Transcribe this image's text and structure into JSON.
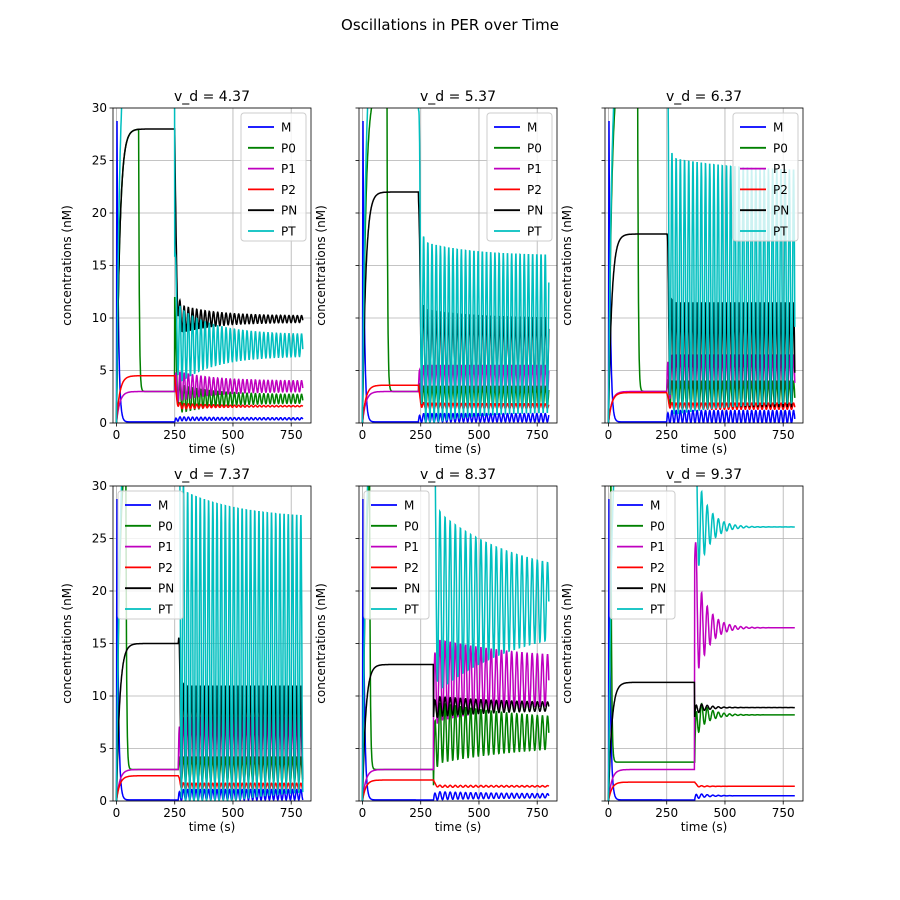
{
  "figure": {
    "title": "Oscillations in PER over Time"
  },
  "colors": {
    "M": "#0000ff",
    "P0": "#008000",
    "P1": "#bf00bf",
    "P2": "#ff0000",
    "PN": "#000000",
    "PT": "#00bfbf",
    "grid": "#b0b0b0"
  },
  "chart_data": [
    {
      "type": "line",
      "title": "v_d = 4.37",
      "xlabel": "time (s)",
      "ylabel": "concentrations (nM)",
      "xlim": [
        -15,
        835
      ],
      "ylim": [
        0,
        30
      ],
      "xticks": [
        0,
        250,
        500,
        750
      ],
      "yticks": [
        0,
        5,
        10,
        15,
        20,
        25,
        30
      ],
      "show_yticklabels": true,
      "show_xticklabels": true,
      "grid": true,
      "legend": "top-right",
      "switch": 250,
      "series": [
        {
          "name": "M",
          "pre": 0.1,
          "post": 0.4,
          "amp0": 0.2,
          "ampEnd": 0.1,
          "period": 18,
          "decay": 150
        },
        {
          "name": "P0",
          "pre": 3.0,
          "post": 2.3,
          "amp0": 1.5,
          "ampEnd": 0.4,
          "period": 18,
          "decay": 150,
          "spikeTo": 12,
          "pre0": 28,
          "preDropAt": 95
        },
        {
          "name": "P1",
          "pre": 3.0,
          "post": 3.5,
          "amp0": 1.5,
          "ampEnd": 0.5,
          "period": 18,
          "decay": 150
        },
        {
          "name": "P2",
          "pre": 4.5,
          "post": 1.6,
          "amp0": 0.3,
          "ampEnd": 0.05,
          "period": 18,
          "decay": 150
        },
        {
          "name": "PN",
          "pre": 28.0,
          "post": 9.9,
          "amp0": 1.5,
          "ampEnd": 0.3,
          "period": 18,
          "decay": 150
        },
        {
          "name": "PT",
          "pre": 38.0,
          "post": 7.4,
          "amp0": 4.0,
          "ampEnd": 1.0,
          "period": 18,
          "decay": 150,
          "spikeTo": 16
        }
      ]
    },
    {
      "type": "line",
      "title": "v_d = 5.37",
      "xlabel": "time (s)",
      "ylabel": "concentrations (nM)",
      "xlim": [
        -15,
        835
      ],
      "ylim": [
        0,
        30
      ],
      "xticks": [
        0,
        250,
        500,
        750
      ],
      "yticks": [
        0,
        5,
        10,
        15,
        20,
        25,
        30
      ],
      "show_yticklabels": false,
      "show_xticklabels": true,
      "grid": true,
      "legend": "top-right",
      "switch": 240,
      "series": [
        {
          "name": "M",
          "pre": 0.1,
          "post": 0.5,
          "amp0": 0.4,
          "ampEnd": 0.4,
          "period": 18,
          "decay": 400
        },
        {
          "name": "P0",
          "pre": 3.0,
          "post": 2.5,
          "amp0": 1.0,
          "ampEnd": 1.0,
          "period": 18,
          "decay": 400,
          "pre0": 32,
          "preDropAt": 105
        },
        {
          "name": "P1",
          "pre": 3.0,
          "post": 4.0,
          "amp0": 1.5,
          "ampEnd": 1.5,
          "period": 18,
          "decay": 400
        },
        {
          "name": "P2",
          "pre": 3.6,
          "post": 1.6,
          "amp0": 0.3,
          "ampEnd": 0.2,
          "period": 18,
          "decay": 400
        },
        {
          "name": "PN",
          "pre": 22.0,
          "post": 7.0,
          "amp0": 4.0,
          "ampEnd": 3.0,
          "period": 18,
          "decay": 200
        },
        {
          "name": "PT",
          "pre": 38.0,
          "post": 8.5,
          "amp0": 9.0,
          "ampEnd": 7.5,
          "period": 18,
          "decay": 200,
          "spikeTo": 30
        }
      ]
    },
    {
      "type": "line",
      "title": "v_d = 6.37",
      "xlabel": "time (s)",
      "ylabel": "concentrations (nM)",
      "xlim": [
        -15,
        835
      ],
      "ylim": [
        0,
        30
      ],
      "xticks": [
        0,
        250,
        500,
        750
      ],
      "yticks": [
        0,
        5,
        10,
        15,
        20,
        25,
        30
      ],
      "show_yticklabels": false,
      "show_xticklabels": true,
      "grid": true,
      "legend": "top-right",
      "switch": 250,
      "series": [
        {
          "name": "M",
          "pre": 0.1,
          "post": 0.6,
          "amp0": 0.6,
          "ampEnd": 0.6,
          "period": 18,
          "decay": 400
        },
        {
          "name": "P0",
          "pre": 3.0,
          "post": 2.8,
          "amp0": 1.2,
          "ampEnd": 1.2,
          "period": 18,
          "decay": 400,
          "pre0": 35,
          "preDropAt": 125
        },
        {
          "name": "P1",
          "pre": 3.0,
          "post": 4.5,
          "amp0": 2.0,
          "ampEnd": 2.0,
          "period": 18,
          "decay": 400
        },
        {
          "name": "P2",
          "pre": 2.9,
          "post": 1.6,
          "amp0": 0.3,
          "ampEnd": 0.3,
          "period": 18,
          "decay": 400
        },
        {
          "name": "PN",
          "pre": 18.0,
          "post": 6.5,
          "amp0": 5.0,
          "ampEnd": 5.0,
          "period": 18,
          "decay": 400
        },
        {
          "name": "PT",
          "pre": 38.0,
          "post": 13.0,
          "amp0": 12.5,
          "ampEnd": 11.0,
          "period": 18,
          "decay": 300,
          "spikeTo": 33
        }
      ]
    },
    {
      "type": "line",
      "title": "v_d = 7.37",
      "xlabel": "time (s)",
      "ylabel": "concentrations (nM)",
      "xlim": [
        -15,
        835
      ],
      "ylim": [
        0,
        30
      ],
      "xticks": [
        0,
        250,
        500,
        750
      ],
      "yticks": [
        0,
        5,
        10,
        15,
        20,
        25,
        30
      ],
      "show_yticklabels": true,
      "show_xticklabels": true,
      "grid": true,
      "legend": "top-left",
      "switch": 265,
      "series": [
        {
          "name": "M",
          "pre": 0.1,
          "post": 0.6,
          "amp0": 0.5,
          "ampEnd": 0.5,
          "period": 18,
          "decay": 400
        },
        {
          "name": "P0",
          "pre": 3.0,
          "post": 3.0,
          "amp0": 1.2,
          "ampEnd": 1.2,
          "period": 18,
          "decay": 400,
          "pre0": 35,
          "preDropAt": 40
        },
        {
          "name": "P1",
          "pre": 3.0,
          "post": 5.0,
          "amp0": 3.0,
          "ampEnd": 3.0,
          "period": 18,
          "decay": 400
        },
        {
          "name": "P2",
          "pre": 2.4,
          "post": 1.4,
          "amp0": 0.3,
          "ampEnd": 0.3,
          "period": 18,
          "decay": 400
        },
        {
          "name": "PN",
          "pre": 15.0,
          "post": 6.5,
          "amp0": 4.5,
          "ampEnd": 4.5,
          "period": 18,
          "decay": 400
        },
        {
          "name": "PT",
          "pre": 38.0,
          "post": 14.0,
          "amp0": 16.0,
          "ampEnd": 13.0,
          "period": 18,
          "decay": 250,
          "spikeTo": 33
        }
      ]
    },
    {
      "type": "line",
      "title": "v_d = 8.37",
      "xlabel": "time (s)",
      "ylabel": "concentrations (nM)",
      "xlim": [
        -15,
        835
      ],
      "ylim": [
        0,
        30
      ],
      "xticks": [
        0,
        250,
        500,
        750
      ],
      "yticks": [
        0,
        5,
        10,
        15,
        20,
        25,
        30
      ],
      "show_yticklabels": false,
      "show_xticklabels": true,
      "grid": true,
      "legend": "top-left",
      "switch": 305,
      "series": [
        {
          "name": "M",
          "pre": 0.1,
          "post": 0.5,
          "amp0": 0.4,
          "ampEnd": 0.15,
          "period": 22,
          "decay": 300
        },
        {
          "name": "P0",
          "pre": 3.0,
          "post": 6.5,
          "amp0": 3.0,
          "ampEnd": 1.0,
          "period": 22,
          "decay": 400,
          "spikeTo": 1.5,
          "pre0": 35,
          "preDropAt": 30
        },
        {
          "name": "P1",
          "pre": 3.0,
          "post": 11.5,
          "amp0": 4.0,
          "ampEnd": 1.8,
          "period": 22,
          "decay": 400,
          "spikeTo": 8
        },
        {
          "name": "P2",
          "pre": 2.0,
          "post": 1.4,
          "amp0": 0.1,
          "ampEnd": 0.05,
          "period": 22,
          "decay": 400
        },
        {
          "name": "PN",
          "pre": 13.0,
          "post": 9.0,
          "amp0": 1.0,
          "ampEnd": 0.3,
          "period": 22,
          "decay": 300,
          "spikeTo": 8
        },
        {
          "name": "PT",
          "pre": 38.0,
          "post": 19.0,
          "amp0": 9.0,
          "ampEnd": 2.0,
          "period": 22,
          "decay": 350,
          "spikeTo": 35
        }
      ]
    },
    {
      "type": "line",
      "title": "v_d = 9.37",
      "xlabel": "time (s)",
      "ylabel": "concentrations (nM)",
      "xlim": [
        -15,
        835
      ],
      "ylim": [
        0,
        30
      ],
      "xticks": [
        0,
        250,
        500,
        750
      ],
      "yticks": [
        0,
        5,
        10,
        15,
        20,
        25,
        30
      ],
      "show_yticklabels": false,
      "show_xticklabels": true,
      "grid": true,
      "legend": "top-left",
      "switch": 370,
      "series": [
        {
          "name": "M",
          "pre": 0.1,
          "post": 0.5,
          "amp0": 0.3,
          "ampEnd": 0.0,
          "period": 24,
          "decay": 50
        },
        {
          "name": "P0",
          "pre": 3.7,
          "post": 8.2,
          "amp0": 2.0,
          "ampEnd": 0.0,
          "period": 24,
          "decay": 50,
          "spikeTo": 3.7,
          "pre0": 35,
          "preDropAt": 10
        },
        {
          "name": "P1",
          "pre": 3.0,
          "post": 16.5,
          "amp0": 6.0,
          "ampEnd": 0.0,
          "period": 24,
          "decay": 50,
          "spikeTo": 23
        },
        {
          "name": "P2",
          "pre": 1.8,
          "post": 1.4,
          "amp0": 0.1,
          "ampEnd": 0.0,
          "period": 24,
          "decay": 50
        },
        {
          "name": "PN",
          "pre": 11.3,
          "post": 8.9,
          "amp0": 0.6,
          "ampEnd": 0.0,
          "period": 24,
          "decay": 50,
          "spikeTo": 8
        },
        {
          "name": "PT",
          "pre": 38.0,
          "post": 26.1,
          "amp0": 6.0,
          "ampEnd": 0.0,
          "period": 24,
          "decay": 50,
          "spikeTo": 36
        }
      ]
    }
  ]
}
